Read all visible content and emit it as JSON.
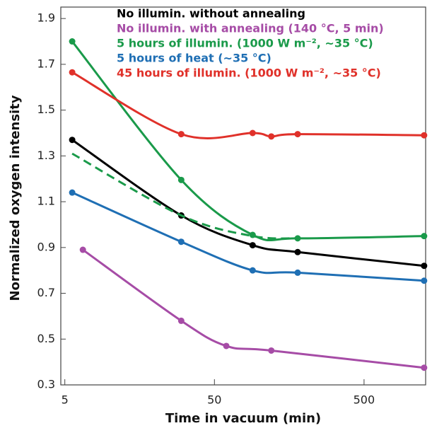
{
  "chart_data": {
    "type": "line",
    "x_label": "Time in vacuum (min)",
    "y_label": "Normalized oxygen intensity",
    "xscale": "log",
    "xlim": [
      4.7,
      1290
    ],
    "xticks": [
      5,
      50,
      500
    ],
    "ylim": [
      0.3,
      1.95
    ],
    "yticks": [
      0.3,
      0.5,
      0.7,
      0.9,
      1.1,
      1.3,
      1.5,
      1.7,
      1.9
    ],
    "series": [
      {
        "name": "No illumin. without annealing",
        "color": "#000000",
        "x": [
          5.6,
          30,
          90,
          180,
          1260
        ],
        "values": [
          1.37,
          1.04,
          0.91,
          0.88,
          0.82
        ]
      },
      {
        "name": "No illumin. with annealing (140 °C, 5 min)",
        "color": "#a64ca6",
        "x": [
          6.6,
          30,
          60,
          120,
          1260
        ],
        "values": [
          0.89,
          0.58,
          0.47,
          0.45,
          0.375
        ]
      },
      {
        "name": "5 hours of illumin. (1000 W m⁻², ~35 °C)",
        "color": "#1a9a4a",
        "x": [
          5.6,
          30,
          90,
          180,
          1260
        ],
        "values": [
          1.8,
          1.195,
          0.955,
          0.94,
          0.95
        ]
      },
      {
        "name": "5 hours of heat (~35 °C)",
        "color": "#1f6fb4",
        "x": [
          5.6,
          30,
          90,
          180,
          1260
        ],
        "values": [
          1.14,
          0.925,
          0.8,
          0.79,
          0.755
        ]
      },
      {
        "name": "45 hours of illumin. (1000 W m⁻², ~35 °C)",
        "color": "#e0312a",
        "x": [
          5.6,
          30,
          90,
          120,
          180,
          1260
        ],
        "values": [
          1.665,
          1.395,
          1.4,
          1.385,
          1.395,
          1.39
        ]
      },
      {
        "color": "#1a9a4a",
        "dashed": true,
        "markers": false,
        "x": [
          5.6,
          30,
          90,
          180
        ],
        "values": [
          1.31,
          1.04,
          0.95,
          0.94
        ]
      }
    ]
  }
}
